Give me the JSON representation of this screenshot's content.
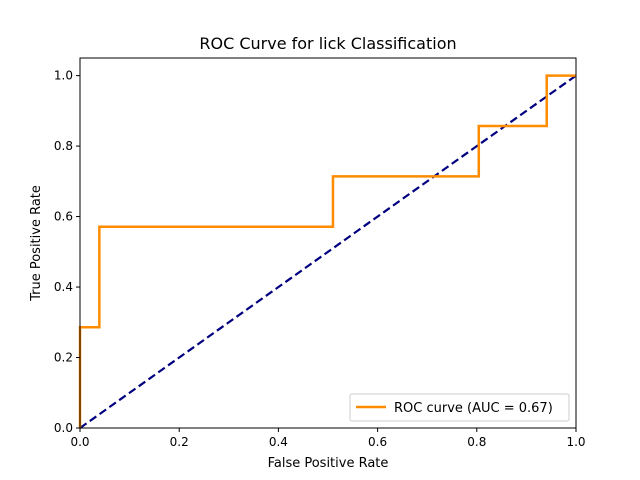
{
  "chart_data": {
    "type": "line",
    "title": "ROC Curve for lick Classification",
    "xlabel": "False Positive Rate",
    "ylabel": "True Positive Rate",
    "xlim": [
      0.0,
      1.0
    ],
    "ylim": [
      0.0,
      1.05
    ],
    "xticks": [
      0.0,
      0.2,
      0.4,
      0.6,
      0.8,
      1.0
    ],
    "xtick_labels": [
      "0.0",
      "0.2",
      "0.4",
      "0.6",
      "0.8",
      "1.0"
    ],
    "yticks": [
      0.0,
      0.2,
      0.4,
      0.6,
      0.8,
      1.0
    ],
    "ytick_labels": [
      "0.0",
      "0.2",
      "0.4",
      "0.6",
      "0.8",
      "1.0"
    ],
    "grid": false,
    "legend_position": "lower-right",
    "series": [
      {
        "name": "ROC curve (AUC = 0.67)",
        "color": "#ff8c00",
        "style": "solid",
        "x": [
          0.0,
          0.0,
          0.0,
          0.039,
          0.039,
          0.51,
          0.51,
          0.804,
          0.804,
          0.941,
          0.941,
          1.0
        ],
        "y": [
          0.0,
          0.286,
          0.286,
          0.286,
          0.571,
          0.571,
          0.714,
          0.714,
          0.857,
          0.857,
          1.0,
          1.0
        ]
      },
      {
        "color": "#000080",
        "style": "dashed",
        "x": [
          0.0,
          1.0
        ],
        "y": [
          0.0,
          1.0
        ]
      }
    ]
  }
}
